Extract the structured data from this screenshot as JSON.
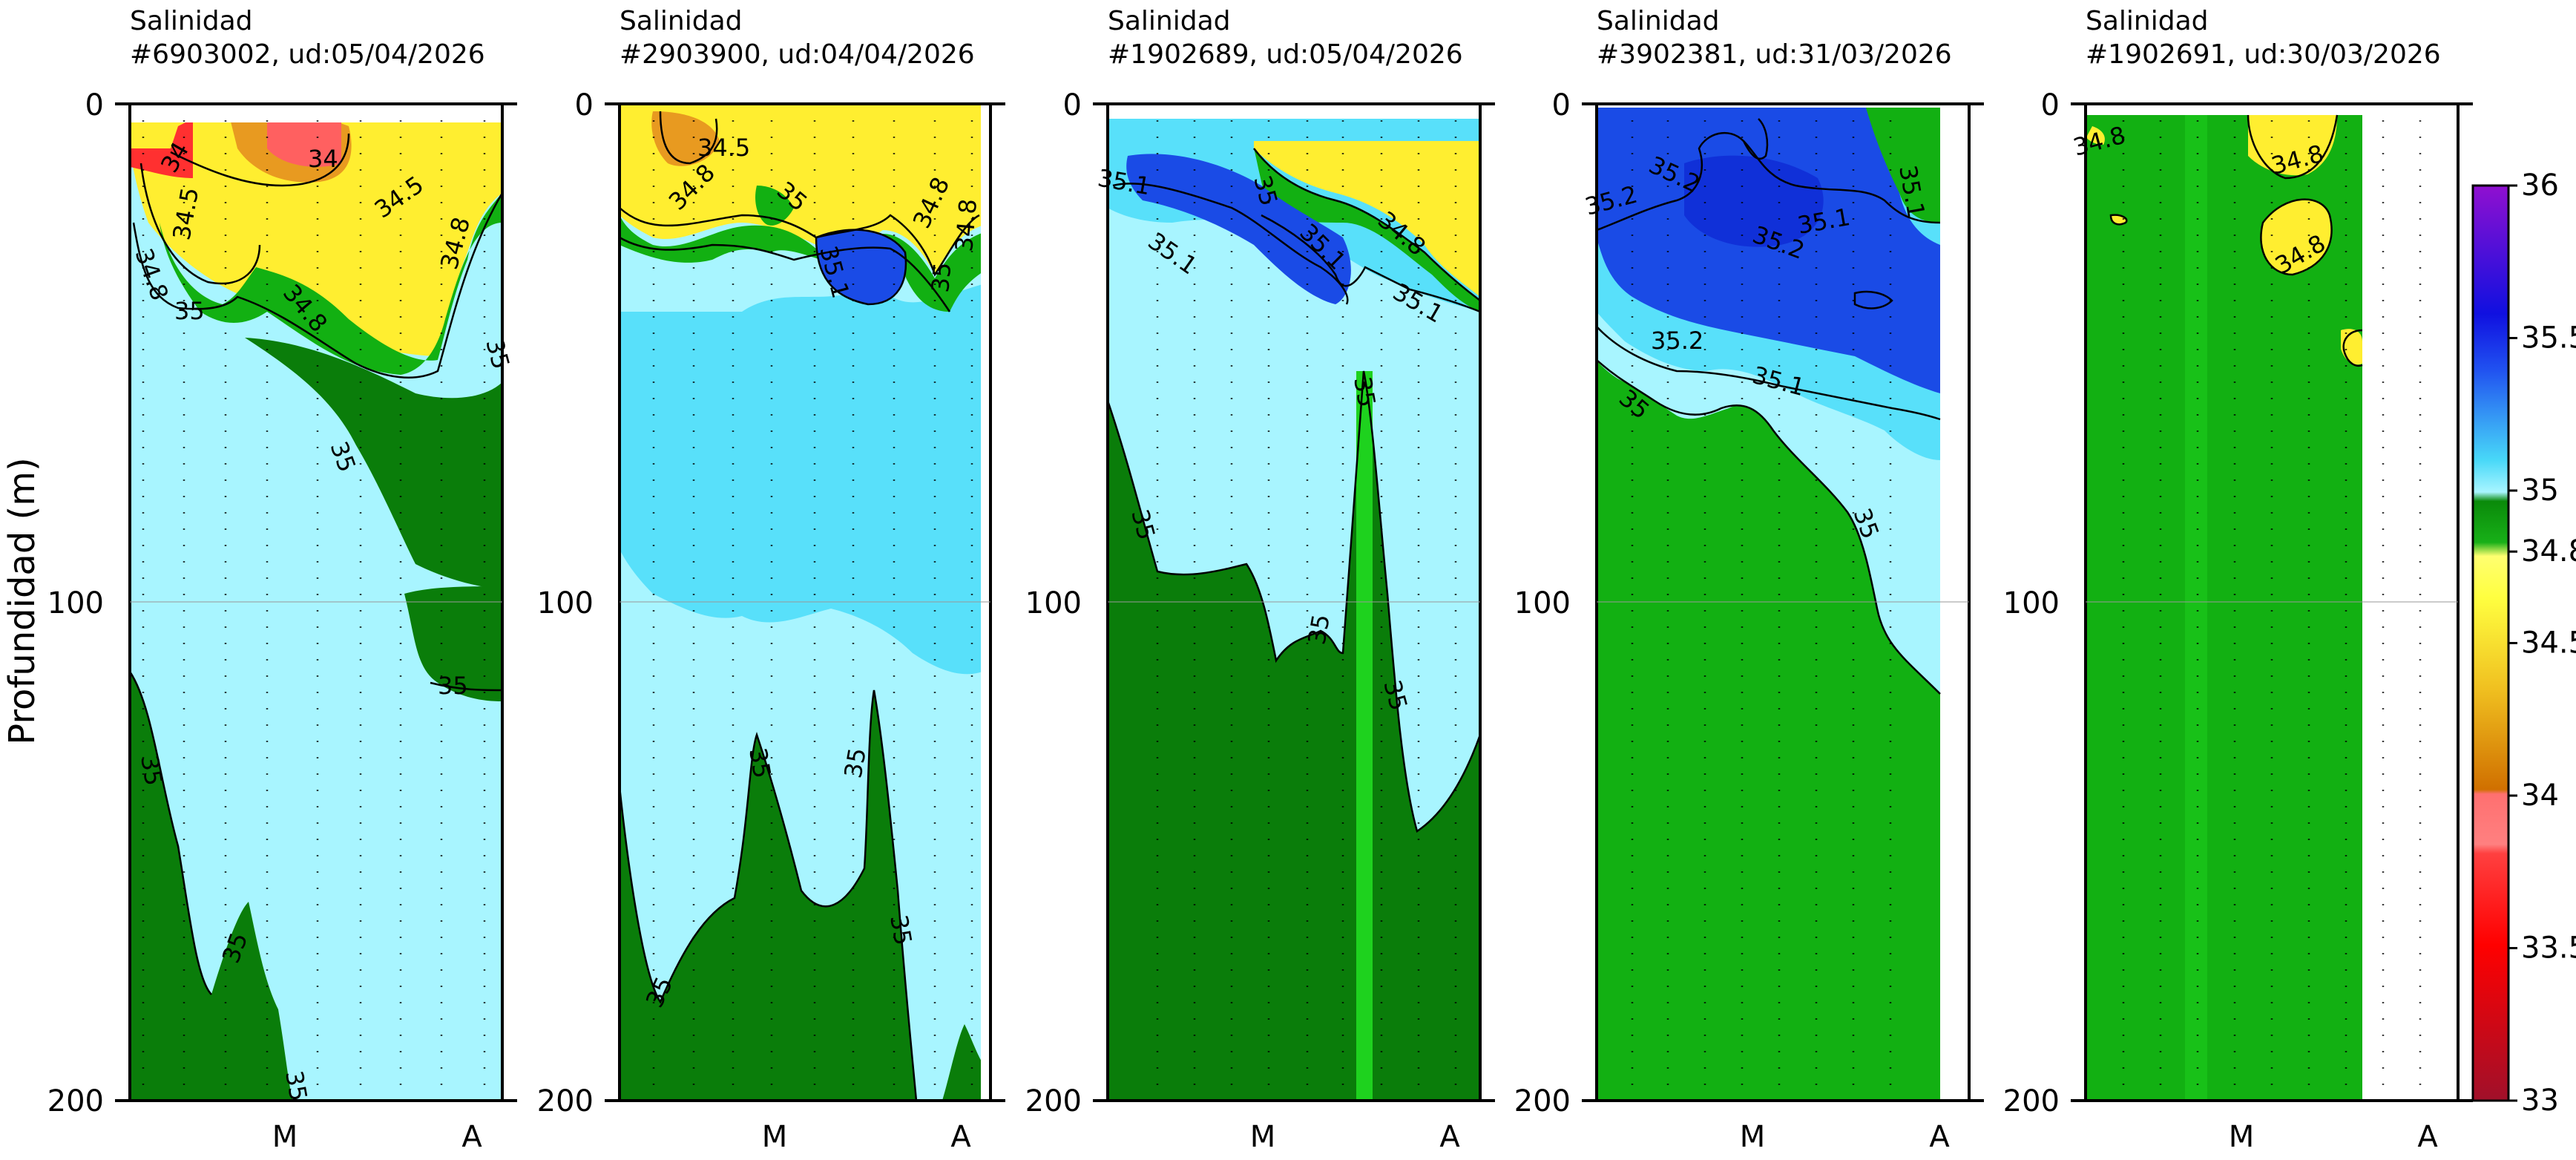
{
  "figure": {
    "ylabel": "Profundidad (m)",
    "depth_ticks": [
      "0",
      "100",
      "200"
    ],
    "month_ticks": [
      "M",
      "A"
    ]
  },
  "colors": {
    "deep_green": "#0a7d0a",
    "mid_green": "#12b012",
    "bright_green": "#1ed21e",
    "light_cyan": "#a8f5ff",
    "cyan": "#58e0fa",
    "blue": "#1a4be6",
    "deep_blue": "#1030d8",
    "yellow": "#ffee30",
    "orange": "#e89a20",
    "red": "#ff3030"
  },
  "chart_data": [
    {
      "type": "heatmap",
      "title_line1": "Salinidad",
      "title_line2": "#6903002, ud:05/04/2026",
      "ylabel": "Profundidad (m)",
      "ylim": [
        200,
        0
      ],
      "x_tick_labels": [
        "M",
        "A"
      ],
      "y_tick_labels": [
        "0",
        "100",
        "200"
      ],
      "contour_labels": [
        "34",
        "34",
        "34.5",
        "34.5",
        "34.8",
        "34.8",
        "34.8",
        "35",
        "35",
        "35",
        "35",
        "35",
        "35",
        "35"
      ]
    },
    {
      "type": "heatmap",
      "title_line1": "Salinidad",
      "title_line2": "#2903900, ud:04/04/2026",
      "ylim": [
        200,
        0
      ],
      "x_tick_labels": [
        "M",
        "A"
      ],
      "y_tick_labels": [
        "0",
        "100",
        "200"
      ],
      "contour_labels": [
        "34.5",
        "34.8",
        "35",
        "35.1",
        "34.8",
        "34.8",
        "35",
        "35",
        "35",
        "35",
        "35"
      ]
    },
    {
      "type": "heatmap",
      "title_line1": "Salinidad",
      "title_line2": "#1902689, ud:05/04/2026",
      "ylim": [
        200,
        0
      ],
      "x_tick_labels": [
        "M",
        "A"
      ],
      "y_tick_labels": [
        "0",
        "100",
        "200"
      ],
      "contour_labels": [
        "35.1",
        "35.1",
        "35",
        "35.1",
        "34.8",
        "35.1",
        "35",
        "35",
        "35",
        "35"
      ]
    },
    {
      "type": "heatmap",
      "title_line1": "Salinidad",
      "title_line2": "#3902381, ud:31/03/2026",
      "ylim": [
        200,
        0
      ],
      "x_tick_labels": [
        "M",
        "A"
      ],
      "y_tick_labels": [
        "0",
        "100",
        "200"
      ],
      "contour_labels": [
        "35.2",
        "35.2",
        "35.2",
        "35.1",
        "35.1",
        "35.2",
        "35.1",
        "35",
        "35"
      ]
    },
    {
      "type": "heatmap",
      "title_line1": "Salinidad",
      "title_line2": "#1902691, ud:30/03/2026",
      "ylim": [
        200,
        0
      ],
      "x_tick_labels": [
        "M",
        "A"
      ],
      "y_tick_labels": [
        "0",
        "100",
        "200"
      ],
      "contour_labels": [
        "34.8",
        "34.8",
        "34.8"
      ]
    }
  ],
  "colorbar": {
    "range": [
      33,
      36
    ],
    "tick_labels": [
      "36",
      "35.5",
      "35",
      "34.8",
      "34.5",
      "34",
      "33.5",
      "33"
    ],
    "tick_values": [
      36,
      35.5,
      35,
      34.8,
      34.5,
      34,
      33.5,
      33
    ]
  }
}
